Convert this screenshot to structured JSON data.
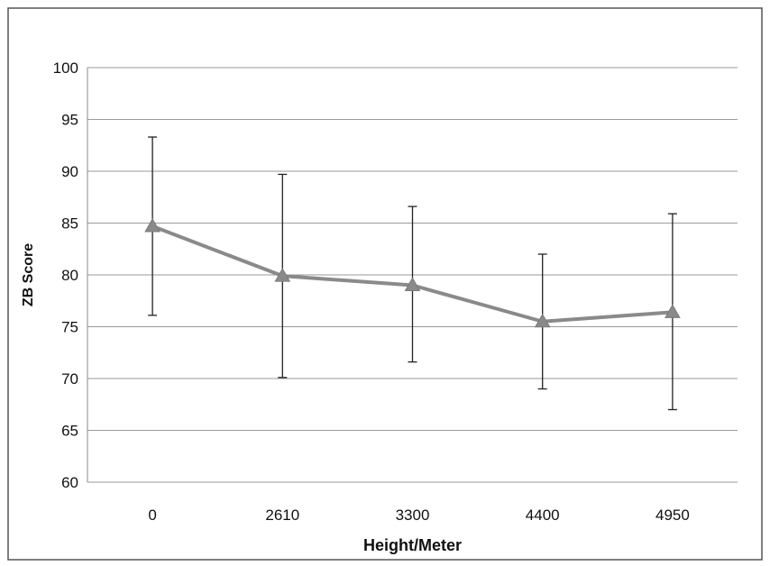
{
  "chart_data": {
    "type": "line",
    "categories": [
      "0",
      "2610",
      "3300",
      "4400",
      "4950"
    ],
    "series": [
      {
        "values": [
          84.7,
          79.9,
          79.0,
          75.5,
          76.4
        ],
        "error_low": [
          76.1,
          70.1,
          71.6,
          69.0,
          67.0
        ],
        "error_high": [
          93.3,
          89.7,
          86.6,
          82.0,
          85.9
        ],
        "color": "#8a8a8a",
        "marker": "triangle"
      }
    ],
    "xlabel": "Height/Meter",
    "ylabel": "ZB Score",
    "ylim": [
      60,
      100
    ],
    "yticks": [
      "60",
      "65",
      "70",
      "75",
      "80",
      "85",
      "90",
      "95",
      "100"
    ],
    "grid": true,
    "legend": "none"
  }
}
